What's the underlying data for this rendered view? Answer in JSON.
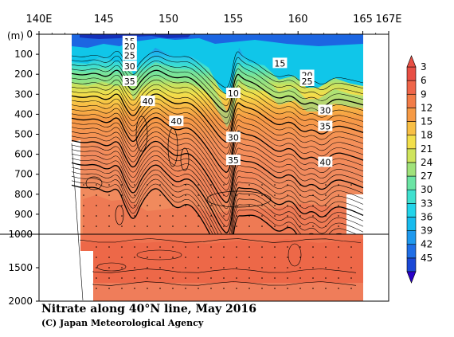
{
  "title": "Nitrate along 40°N line, May 2016",
  "credit": "(C) Japan Meteorological Agency",
  "axis": {
    "x_ticks": [
      "140E",
      "145",
      "150",
      "155",
      "160",
      "165",
      "167E"
    ],
    "x_values": [
      140,
      145,
      150,
      155,
      160,
      165,
      167
    ],
    "y_unit": "(m)",
    "y_ticks_upper": [
      "0",
      "100",
      "200",
      "300",
      "400",
      "500",
      "600",
      "700",
      "800",
      "900",
      "1000"
    ],
    "y_ticks_lower": [
      "1500",
      "2000"
    ],
    "x_range": [
      140,
      167
    ],
    "depth_upper": [
      0,
      1000
    ],
    "depth_lower": [
      1000,
      2000
    ]
  },
  "colorbar": {
    "labels": [
      "3",
      "6",
      "9",
      "12",
      "15",
      "18",
      "21",
      "24",
      "27",
      "30",
      "33",
      "36",
      "39",
      "42",
      "45"
    ],
    "colors": [
      "#1a48d6",
      "#1f6ee6",
      "#1e99ee",
      "#17bbee",
      "#22d4ea",
      "#3fe0cf",
      "#6be4a4",
      "#a0e27a",
      "#cfe45c",
      "#f2df4b",
      "#f8bf45",
      "#f69a45",
      "#f27c47",
      "#ef6549",
      "#e84f44"
    ],
    "extends": "both"
  },
  "contour_labels": [
    {
      "text": "15",
      "lon": 147.0,
      "depth": 35
    },
    {
      "text": "20",
      "lon": 147.0,
      "depth": 60
    },
    {
      "text": "25",
      "lon": 147.0,
      "depth": 105
    },
    {
      "text": "30",
      "lon": 147.0,
      "depth": 160
    },
    {
      "text": "35",
      "lon": 147.0,
      "depth": 235
    },
    {
      "text": "40",
      "lon": 148.4,
      "depth": 335
    },
    {
      "text": "40",
      "lon": 150.6,
      "depth": 435
    },
    {
      "text": "10",
      "lon": 155.0,
      "depth": 295
    },
    {
      "text": "30",
      "lon": 155.0,
      "depth": 515
    },
    {
      "text": "35",
      "lon": 155.0,
      "depth": 630
    },
    {
      "text": "15",
      "lon": 158.6,
      "depth": 145
    },
    {
      "text": "20",
      "lon": 160.7,
      "depth": 205
    },
    {
      "text": "25",
      "lon": 160.7,
      "depth": 235
    },
    {
      "text": "30",
      "lon": 162.1,
      "depth": 380
    },
    {
      "text": "35",
      "lon": 162.1,
      "depth": 460
    },
    {
      "text": "40",
      "lon": 162.1,
      "depth": 640
    }
  ]
}
